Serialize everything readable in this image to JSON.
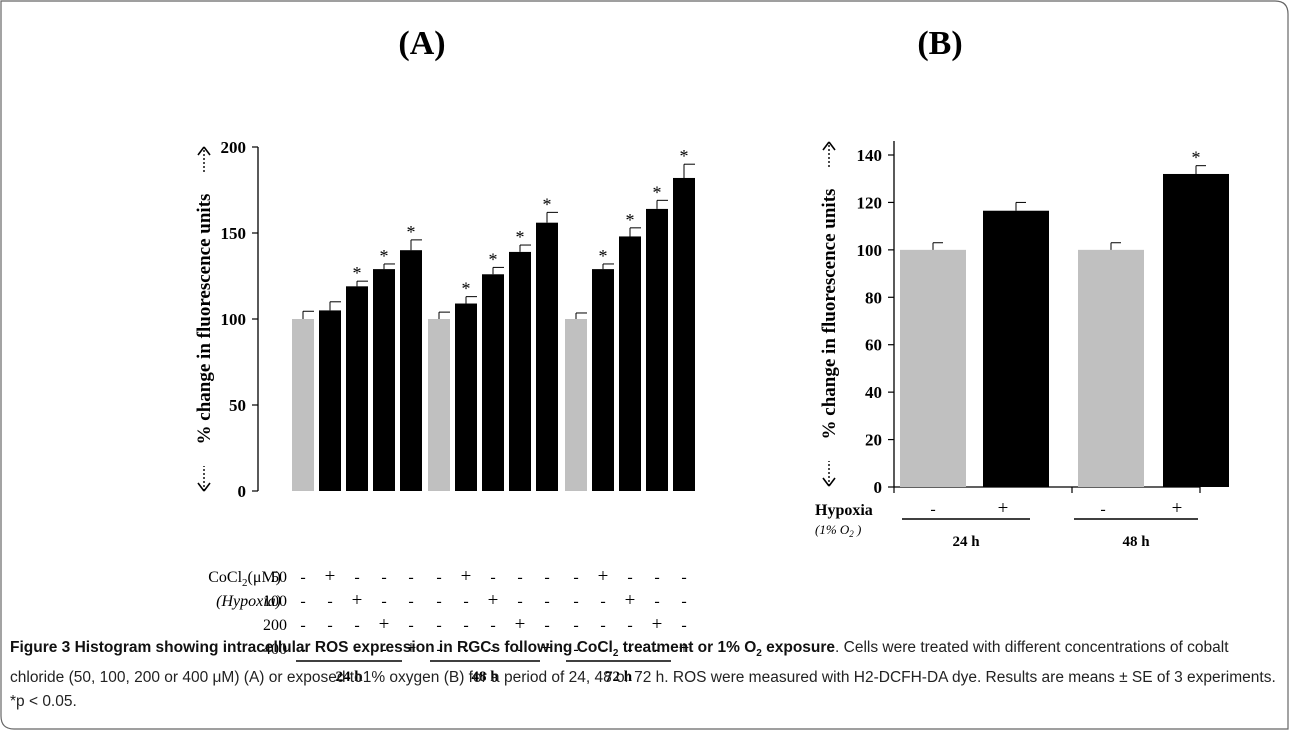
{
  "panel_a_label": "(A)",
  "panel_b_label": "(B)",
  "chart_data": [
    {
      "type": "bar",
      "panel": "(A)",
      "ylabel": "% change in fluorescence units",
      "ylim": [
        0,
        200
      ],
      "yticks": [
        0,
        50,
        100,
        150,
        200
      ],
      "groups": [
        "24 h",
        "48 h",
        "72 h"
      ],
      "bars_per_group": [
        {
          "values": [
            100,
            105,
            119,
            129,
            140
          ],
          "errors": [
            4.5,
            5,
            3,
            3,
            6
          ],
          "sig": [
            false,
            false,
            true,
            true,
            true
          ],
          "colors": [
            "#c0c0c0",
            "#000000",
            "#000000",
            "#000000",
            "#000000"
          ]
        },
        {
          "values": [
            100,
            109,
            126,
            139,
            156
          ],
          "errors": [
            4,
            4,
            4,
            4,
            6
          ],
          "sig": [
            false,
            true,
            true,
            true,
            true
          ],
          "colors": [
            "#c0c0c0",
            "#000000",
            "#000000",
            "#000000",
            "#000000"
          ]
        },
        {
          "values": [
            100,
            129,
            148,
            164,
            182
          ],
          "errors": [
            3.5,
            3,
            5,
            5,
            8
          ],
          "sig": [
            false,
            true,
            true,
            true,
            true
          ],
          "colors": [
            "#c0c0c0",
            "#000000",
            "#000000",
            "#000000",
            "#000000"
          ]
        }
      ],
      "treatment_rows": [
        {
          "label": "50",
          "marks": [
            "-",
            "+",
            "-",
            "-",
            "-"
          ]
        },
        {
          "label": "100",
          "marks": [
            "-",
            "-",
            "+",
            "-",
            "-"
          ]
        },
        {
          "label": "200",
          "marks": [
            "-",
            "-",
            "-",
            "+",
            "-"
          ]
        },
        {
          "label": "400",
          "marks": [
            "-",
            "-",
            "-",
            "-",
            "+"
          ]
        }
      ],
      "row_header_1_main": "CoCl",
      "row_header_1_sub": "2",
      "row_header_1_unit": "(μM)",
      "row_header_2": "(Hypoxia)",
      "significance_symbol": "*"
    },
    {
      "type": "bar",
      "panel": "(B)",
      "ylabel": "% change in fluorescence units",
      "ylim": [
        0,
        140
      ],
      "yticks": [
        0,
        20,
        40,
        60,
        80,
        100,
        120,
        140
      ],
      "groups": [
        "24 h",
        "48 h"
      ],
      "bars_per_group": [
        {
          "values": [
            100,
            116.5
          ],
          "errors": [
            3,
            3.5
          ],
          "sig": [
            false,
            false
          ],
          "colors": [
            "#c0c0c0",
            "#000000"
          ]
        },
        {
          "values": [
            100,
            132
          ],
          "errors": [
            3,
            3.5
          ],
          "sig": [
            false,
            true
          ],
          "colors": [
            "#c0c0c0",
            "#000000"
          ]
        }
      ],
      "treatment_rows": [
        {
          "label": "Hypoxia",
          "marks": [
            "-",
            "+"
          ]
        }
      ],
      "row_sublabel": "(1% O",
      "row_sublabel_sub": "2",
      "row_sublabel_end": " )",
      "significance_symbol": "*"
    }
  ],
  "caption": {
    "bold_1": "Figure 3 Histogram showing intracellular ROS expression in RGCs following CoCl",
    "bold_sub_1": "2",
    "bold_2": " treatment or 1% O",
    "bold_sub_2": "2",
    "bold_3": " exposure",
    "rest": ". Cells were treated with different concentrations of cobalt chloride (50, 100, 200 or 400 μM) (A) or exposed to1% oxygen (B) for a period of 24, 48 or 72 h. ROS were measured with H2-DCFH-DA dye. Results are means ± SE of 3 experiments. *p < 0.05."
  }
}
